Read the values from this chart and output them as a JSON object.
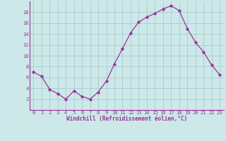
{
  "x": [
    0,
    1,
    2,
    3,
    4,
    5,
    6,
    7,
    8,
    9,
    10,
    11,
    12,
    13,
    14,
    15,
    16,
    17,
    18,
    19,
    20,
    21,
    22,
    23
  ],
  "y": [
    7,
    6.2,
    3.8,
    3,
    2,
    3.5,
    2.5,
    2,
    3.3,
    5.3,
    8.5,
    11.3,
    14.2,
    16.2,
    17.1,
    17.8,
    18.6,
    19.2,
    18.3,
    15,
    12.5,
    10.7,
    8.3,
    6.5
  ],
  "line_color": "#993399",
  "marker": "D",
  "marker_size": 2.2,
  "bg_color": "#cce8e8",
  "grid_color": "#aacccc",
  "xlabel": "Windchill (Refroidissement éolien,°C)",
  "xlabel_color": "#993399",
  "tick_color": "#993399",
  "spine_color": "#993399",
  "ylim": [
    0,
    20
  ],
  "xlim": [
    -0.5,
    23.5
  ],
  "yticks": [
    2,
    4,
    6,
    8,
    10,
    12,
    14,
    16,
    18
  ],
  "xticks": [
    0,
    1,
    2,
    3,
    4,
    5,
    6,
    7,
    8,
    9,
    10,
    11,
    12,
    13,
    14,
    15,
    16,
    17,
    18,
    19,
    20,
    21,
    22,
    23
  ],
  "xlabel_fontsize": 5.5,
  "tick_fontsize": 5.0
}
